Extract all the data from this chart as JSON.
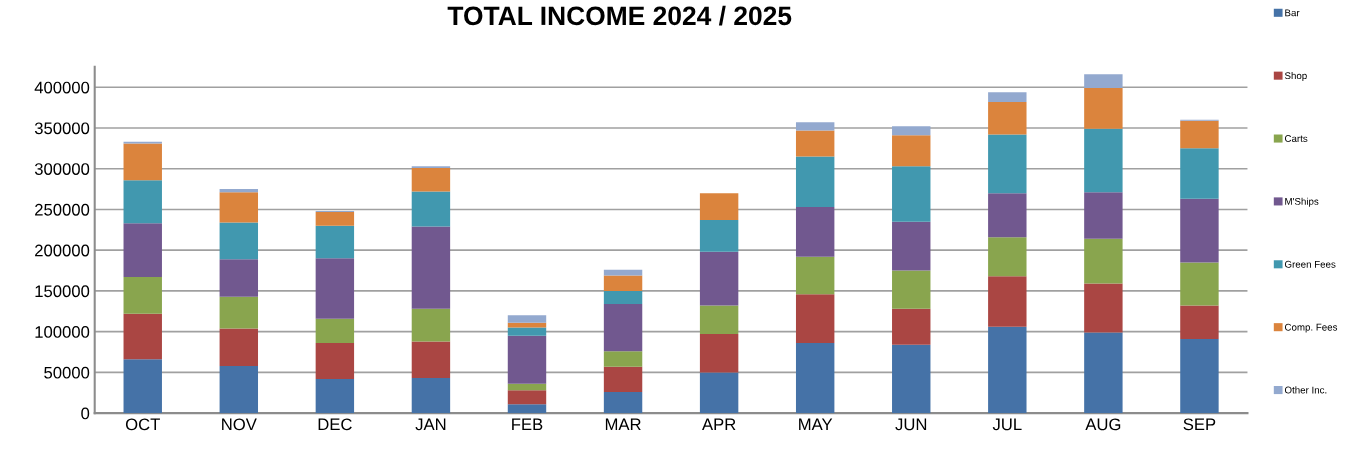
{
  "chart_data": {
    "type": "bar",
    "title": "TOTAL INCOME 2024 / 2025",
    "stacked": true,
    "categories": [
      "OCT",
      "NOV",
      "DEC",
      "JAN",
      "FEB",
      "MAR",
      "APR",
      "MAY",
      "JUN",
      "JUL",
      "AUG",
      "SEP"
    ],
    "series": [
      {
        "name": "Bar",
        "color": "#4572a7",
        "values": [
          66000,
          58000,
          42000,
          43000,
          11000,
          26000,
          50000,
          86000,
          84000,
          106000,
          99000,
          91000
        ]
      },
      {
        "name": "Shop",
        "color": "#aa4643",
        "values": [
          56000,
          46000,
          44000,
          45000,
          17000,
          31000,
          47000,
          60000,
          44000,
          62000,
          60000,
          41000
        ]
      },
      {
        "name": "Carts",
        "color": "#89a54e",
        "values": [
          45000,
          39000,
          30000,
          40000,
          8000,
          19000,
          35000,
          46000,
          47000,
          48000,
          55000,
          53000
        ]
      },
      {
        "name": "M'Ships",
        "color": "#71588f",
        "values": [
          66000,
          46000,
          74000,
          101000,
          59000,
          58000,
          66000,
          61000,
          60000,
          54000,
          57000,
          78000
        ]
      },
      {
        "name": "Green Fees",
        "color": "#4198af",
        "values": [
          53000,
          45000,
          40000,
          43000,
          10000,
          16000,
          39000,
          62000,
          68000,
          72000,
          78000,
          62000
        ]
      },
      {
        "name": "Comp. Fees",
        "color": "#db843d",
        "values": [
          45000,
          37000,
          17000,
          29000,
          6000,
          19000,
          33000,
          32000,
          38000,
          40000,
          50000,
          34000
        ]
      },
      {
        "name": "Other Inc.",
        "color": "#93a9cf",
        "values": [
          2000,
          4000,
          1000,
          2000,
          9000,
          7000,
          null,
          10000,
          11000,
          12000,
          17000,
          1000
        ]
      }
    ],
    "ylim": [
      0,
      425000
    ],
    "yticks": [
      0,
      50000,
      100000,
      150000,
      200000,
      250000,
      300000,
      350000,
      400000
    ],
    "grid": "y",
    "legend": "right"
  }
}
